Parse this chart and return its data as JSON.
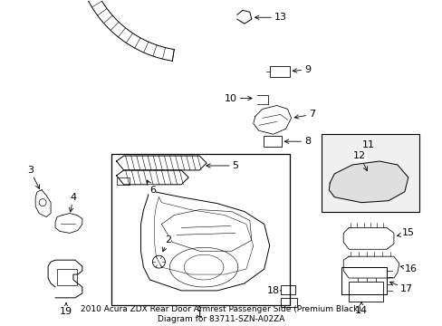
{
  "bg_color": "#ffffff",
  "fig_width": 4.89,
  "fig_height": 3.6,
  "dpi": 100,
  "label_fontsize": 8,
  "title": "2010 Acura ZDX Rear Door Armrest Passenger Side (Premium Black)\nDiagram for 83711-SZN-A02ZA",
  "title_fontsize": 6.5
}
